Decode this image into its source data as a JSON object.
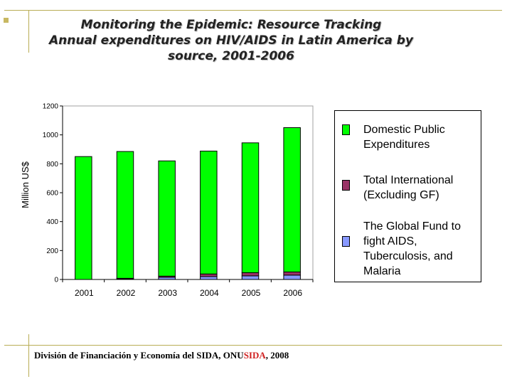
{
  "title": {
    "line1": "Monitoring the Epidemic: Resource Tracking",
    "line2": "Annual expenditures on HIV/AIDS in Latin America by",
    "line3": "source, 2001-2006"
  },
  "chart_data": {
    "type": "bar",
    "stacked": true,
    "categories": [
      "2001",
      "2002",
      "2003",
      "2004",
      "2005",
      "2006"
    ],
    "series": [
      {
        "name": "The Global Fund to fight AIDS, Tuberculosis, and Malaria",
        "color": "#8899ff",
        "values": [
          0,
          5,
          15,
          20,
          25,
          30
        ]
      },
      {
        "name": "Total International (Excluding GF)",
        "color": "#993366",
        "values": [
          0,
          3,
          8,
          18,
          22,
          22
        ]
      },
      {
        "name": "Domestic Public Expenditures",
        "color": "#00ff00",
        "values": [
          850,
          877,
          797,
          850,
          898,
          998
        ]
      }
    ],
    "ylabel": "Million US$",
    "xlabel": "",
    "ylim": [
      0,
      1200
    ],
    "yticks": [
      "0",
      "200",
      "400",
      "600",
      "800",
      "1000",
      "1200"
    ],
    "grid": false,
    "legend_position": "right"
  },
  "legend": [
    {
      "label": "Domestic Public Expenditures",
      "color": "#00ff00"
    },
    {
      "label": "Total International (Excluding GF)",
      "color": "#993366"
    },
    {
      "label": "The Global Fund to fight AIDS, Tuberculosis, and Malaria",
      "color": "#8899ff"
    }
  ],
  "footer": {
    "pre": "División de Financiación y Economía del SIDA, ONU",
    "accent": "SIDA",
    "post": ", 2008"
  }
}
